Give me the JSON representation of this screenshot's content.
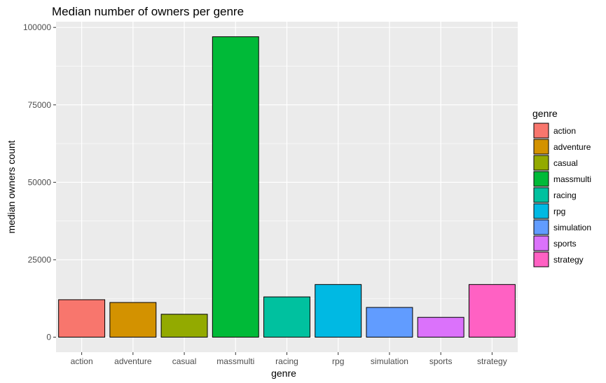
{
  "chart_data": {
    "type": "bar",
    "title": "Median number of owners per genre",
    "xlabel": "genre",
    "ylabel": "median owners count",
    "categories": [
      "action",
      "adventure",
      "casual",
      "massmulti",
      "racing",
      "rpg",
      "simulation",
      "sports",
      "strategy"
    ],
    "values": [
      12100,
      11200,
      7400,
      97000,
      13000,
      17000,
      9600,
      6400,
      17000
    ],
    "colors": [
      "#F8766D",
      "#D39200",
      "#93AA00",
      "#00BA38",
      "#00C19F",
      "#00B9E3",
      "#619CFF",
      "#DB72FB",
      "#FF61C3"
    ],
    "yticks": [
      0,
      25000,
      50000,
      75000,
      100000
    ],
    "ytick_labels": [
      "0",
      "25000",
      "50000",
      "75000",
      "100000"
    ],
    "ylim": [
      -4850,
      101850
    ],
    "grid": true,
    "panel_background": "#EBEBEB",
    "legend": {
      "title": "genre",
      "placement": "right",
      "entries": [
        "action",
        "adventure",
        "casual",
        "massmulti",
        "racing",
        "rpg",
        "simulation",
        "sports",
        "strategy"
      ]
    }
  }
}
